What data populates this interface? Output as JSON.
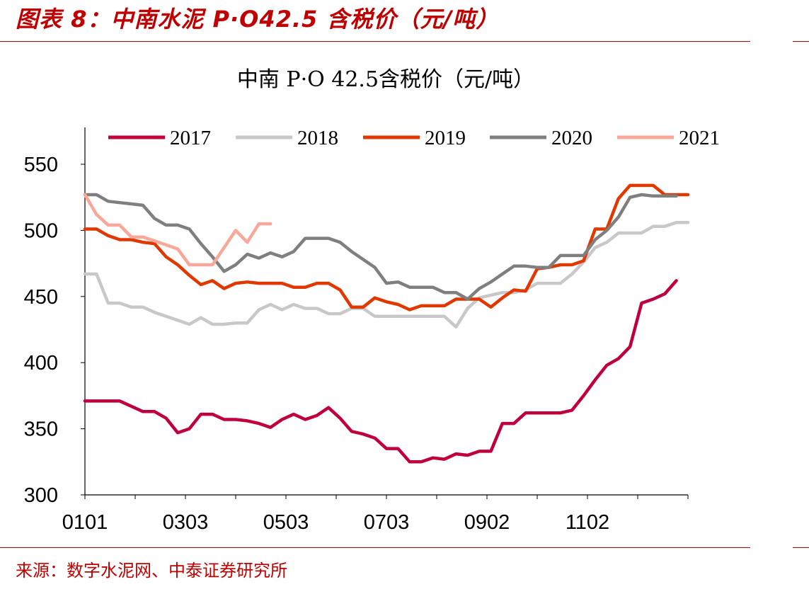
{
  "figure_title": "图表 8：中南水泥 P·O42.5 含税价（元/吨）",
  "source_note": "来源：数字水泥网、中泰证券研究所",
  "chart_data": {
    "type": "line",
    "title": "中南 P·O 42.5含税价（元/吨）",
    "xlabel": "",
    "ylabel": "",
    "x_ticks": [
      "0101",
      "0303",
      "0503",
      "0703",
      "0902",
      "1102"
    ],
    "ylim": [
      300,
      550
    ],
    "y_ticks": [
      300,
      350,
      400,
      450,
      500,
      550
    ],
    "grid": false,
    "legend_position": "top",
    "series": [
      {
        "name": "2017",
        "color": "#c0003c",
        "values": [
          371,
          371,
          371,
          371,
          367,
          363,
          363,
          358,
          347,
          350,
          361,
          361,
          357,
          357,
          356,
          354,
          351,
          357,
          361,
          357,
          360,
          366,
          358,
          348,
          346,
          343,
          335,
          335,
          325,
          325,
          328,
          327,
          331,
          330,
          333,
          333,
          354,
          354,
          362,
          362,
          362,
          362,
          364,
          375,
          387,
          398,
          403,
          412,
          445,
          448,
          452,
          462
        ]
      },
      {
        "name": "2018",
        "color": "#c8c8c8",
        "values": [
          467,
          467,
          445,
          445,
          442,
          442,
          438,
          435,
          432,
          429,
          434,
          429,
          429,
          430,
          430,
          440,
          444,
          440,
          444,
          441,
          441,
          437,
          437,
          441,
          441,
          435,
          435,
          435,
          435,
          435,
          435,
          435,
          427,
          441,
          449,
          451,
          453,
          453,
          455,
          460,
          460,
          460,
          467,
          476,
          487,
          491,
          498,
          498,
          498,
          503,
          503,
          506,
          506
        ]
      },
      {
        "name": "2019",
        "color": "#e03800",
        "values": [
          501,
          501,
          496,
          493,
          493,
          491,
          490,
          480,
          474,
          466,
          459,
          462,
          456,
          460,
          461,
          460,
          460,
          460,
          457,
          457,
          460,
          460,
          455,
          442,
          442,
          449,
          446,
          444,
          440,
          443,
          443,
          443,
          448,
          448,
          448,
          442,
          449,
          455,
          454,
          471,
          472,
          474,
          474,
          477,
          501,
          501,
          524,
          534,
          534,
          534,
          527,
          527,
          527
        ]
      },
      {
        "name": "2020",
        "color": "#7f7f7f",
        "values": [
          527,
          527,
          522,
          521,
          520,
          519,
          509,
          504,
          504,
          501,
          490,
          480,
          469,
          474,
          482,
          479,
          483,
          480,
          484,
          494,
          494,
          494,
          491,
          484,
          478,
          472,
          460,
          461,
          457,
          457,
          457,
          453,
          453,
          448,
          456,
          461,
          467,
          473,
          473,
          472,
          472,
          481,
          481,
          481,
          493,
          500,
          510,
          525,
          527,
          526,
          526,
          526
        ]
      },
      {
        "name": "2021",
        "color": "#f8a898",
        "values": [
          527,
          512,
          504,
          504,
          495,
          495,
          492,
          489,
          486,
          474,
          474,
          474,
          487,
          500,
          491,
          505,
          505
        ]
      }
    ]
  }
}
